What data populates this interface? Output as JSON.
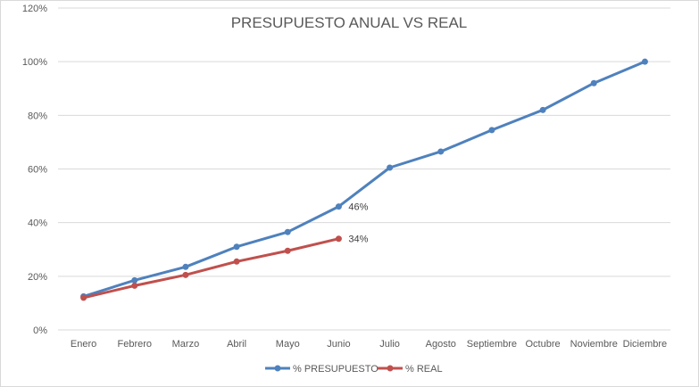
{
  "chart_data": {
    "type": "line",
    "title": "PRESUPUESTO ANUAL VS REAL",
    "xlabel": "",
    "ylabel": "",
    "categories": [
      "Enero",
      "Febrero",
      "Marzo",
      "Abril",
      "Mayo",
      "Junio",
      "Julio",
      "Agosto",
      "Septiembre",
      "Octubre",
      "Noviembre",
      "Diciembre"
    ],
    "ylim": [
      0,
      120
    ],
    "yticks": [
      0,
      20,
      40,
      60,
      80,
      100,
      120
    ],
    "ytick_labels": [
      "0%",
      "20%",
      "40%",
      "60%",
      "80%",
      "100%",
      "120%"
    ],
    "grid": true,
    "legend_position": "bottom",
    "series": [
      {
        "name": "% PRESUPUESTO",
        "color": "#4f81bd",
        "values": [
          12.5,
          18.5,
          23.5,
          31,
          36.5,
          46,
          60.5,
          66.5,
          74.5,
          82,
          92,
          100
        ],
        "data_labels": [
          null,
          null,
          null,
          null,
          null,
          "46%",
          null,
          null,
          null,
          null,
          null,
          null
        ]
      },
      {
        "name": "% REAL",
        "color": "#c0504d",
        "values": [
          12,
          16.5,
          20.5,
          25.5,
          29.5,
          34,
          null,
          null,
          null,
          null,
          null,
          null
        ],
        "data_labels": [
          null,
          null,
          null,
          null,
          null,
          "34%",
          null,
          null,
          null,
          null,
          null,
          null
        ]
      }
    ]
  }
}
